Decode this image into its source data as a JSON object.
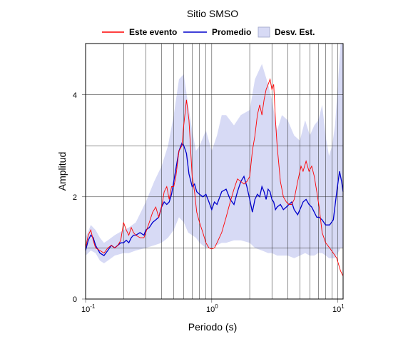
{
  "chart_data": {
    "type": "line",
    "title": "Sitio SMSO",
    "xlabel": "Periodo (s)",
    "ylabel": "Amplitud",
    "x_scale": "log",
    "xlim": [
      0.1,
      11
    ],
    "ylim": [
      0,
      5
    ],
    "x_ticks": [
      {
        "base": "10",
        "exp": "-1"
      },
      {
        "base": "10",
        "exp": "0"
      },
      {
        "base": "10",
        "exp": "1"
      }
    ],
    "y_ticks": [
      "0",
      "2",
      "4"
    ],
    "grid": true,
    "legend": {
      "placement": "top",
      "items": [
        {
          "label": "Este evento",
          "color": "#ff0000",
          "kind": "line"
        },
        {
          "label": "Promedio",
          "color": "#0000cc",
          "kind": "line"
        },
        {
          "label": "Desv. Est.",
          "color": "#d7daf5",
          "kind": "box"
        }
      ]
    },
    "series": [
      {
        "name": "Este evento",
        "color": "#ff0000",
        "points": [
          [
            0.1,
            1.0
          ],
          [
            0.105,
            1.25
          ],
          [
            0.11,
            1.35
          ],
          [
            0.115,
            1.15
          ],
          [
            0.12,
            1.0
          ],
          [
            0.13,
            0.95
          ],
          [
            0.14,
            0.9
          ],
          [
            0.15,
            1.0
          ],
          [
            0.16,
            1.05
          ],
          [
            0.17,
            1.0
          ],
          [
            0.18,
            1.05
          ],
          [
            0.19,
            1.15
          ],
          [
            0.2,
            1.5
          ],
          [
            0.21,
            1.35
          ],
          [
            0.22,
            1.25
          ],
          [
            0.23,
            1.4
          ],
          [
            0.24,
            1.3
          ],
          [
            0.25,
            1.25
          ],
          [
            0.27,
            1.2
          ],
          [
            0.29,
            1.2
          ],
          [
            0.3,
            1.3
          ],
          [
            0.32,
            1.5
          ],
          [
            0.34,
            1.7
          ],
          [
            0.36,
            1.8
          ],
          [
            0.38,
            1.6
          ],
          [
            0.4,
            1.8
          ],
          [
            0.42,
            2.1
          ],
          [
            0.44,
            2.2
          ],
          [
            0.46,
            1.95
          ],
          [
            0.48,
            2.2
          ],
          [
            0.5,
            2.2
          ],
          [
            0.52,
            2.4
          ],
          [
            0.55,
            2.9
          ],
          [
            0.58,
            3.0
          ],
          [
            0.6,
            3.4
          ],
          [
            0.63,
            3.9
          ],
          [
            0.66,
            3.5
          ],
          [
            0.7,
            2.4
          ],
          [
            0.73,
            2.1
          ],
          [
            0.76,
            1.7
          ],
          [
            0.8,
            1.5
          ],
          [
            0.85,
            1.3
          ],
          [
            0.9,
            1.1
          ],
          [
            0.95,
            1.0
          ],
          [
            1.0,
            0.98
          ],
          [
            1.05,
            1.0
          ],
          [
            1.1,
            1.1
          ],
          [
            1.2,
            1.3
          ],
          [
            1.3,
            1.6
          ],
          [
            1.4,
            1.9
          ],
          [
            1.5,
            2.15
          ],
          [
            1.6,
            2.35
          ],
          [
            1.7,
            2.3
          ],
          [
            1.8,
            2.25
          ],
          [
            1.9,
            2.3
          ],
          [
            2.0,
            2.4
          ],
          [
            2.1,
            2.9
          ],
          [
            2.2,
            3.2
          ],
          [
            2.3,
            3.6
          ],
          [
            2.4,
            3.8
          ],
          [
            2.5,
            3.6
          ],
          [
            2.6,
            3.9
          ],
          [
            2.7,
            4.1
          ],
          [
            2.8,
            4.2
          ],
          [
            2.9,
            4.3
          ],
          [
            3.0,
            4.1
          ],
          [
            3.1,
            4.2
          ],
          [
            3.2,
            3.5
          ],
          [
            3.3,
            3.0
          ],
          [
            3.5,
            2.3
          ],
          [
            3.7,
            2.0
          ],
          [
            3.9,
            1.9
          ],
          [
            4.1,
            1.85
          ],
          [
            4.3,
            1.85
          ],
          [
            4.5,
            1.95
          ],
          [
            4.8,
            2.3
          ],
          [
            5.1,
            2.6
          ],
          [
            5.3,
            2.5
          ],
          [
            5.6,
            2.7
          ],
          [
            5.9,
            2.5
          ],
          [
            6.2,
            2.6
          ],
          [
            6.5,
            2.4
          ],
          [
            6.8,
            2.1
          ],
          [
            7.1,
            1.8
          ],
          [
            7.5,
            1.3
          ],
          [
            8.0,
            1.1
          ],
          [
            8.6,
            1.0
          ],
          [
            9.2,
            0.9
          ],
          [
            9.8,
            0.8
          ],
          [
            10.5,
            0.55
          ],
          [
            11,
            0.45
          ]
        ]
      },
      {
        "name": "Promedio",
        "color": "#0000cc",
        "points": [
          [
            0.1,
            0.95
          ],
          [
            0.105,
            1.15
          ],
          [
            0.11,
            1.25
          ],
          [
            0.115,
            1.2
          ],
          [
            0.12,
            1.05
          ],
          [
            0.13,
            0.9
          ],
          [
            0.14,
            0.85
          ],
          [
            0.15,
            0.95
          ],
          [
            0.16,
            1.05
          ],
          [
            0.17,
            1.0
          ],
          [
            0.18,
            1.05
          ],
          [
            0.19,
            1.1
          ],
          [
            0.2,
            1.1
          ],
          [
            0.21,
            1.15
          ],
          [
            0.22,
            1.1
          ],
          [
            0.23,
            1.2
          ],
          [
            0.24,
            1.25
          ],
          [
            0.25,
            1.25
          ],
          [
            0.27,
            1.3
          ],
          [
            0.29,
            1.25
          ],
          [
            0.3,
            1.35
          ],
          [
            0.32,
            1.4
          ],
          [
            0.34,
            1.5
          ],
          [
            0.36,
            1.55
          ],
          [
            0.38,
            1.6
          ],
          [
            0.4,
            1.8
          ],
          [
            0.42,
            1.9
          ],
          [
            0.44,
            1.85
          ],
          [
            0.46,
            1.9
          ],
          [
            0.48,
            2.05
          ],
          [
            0.5,
            2.3
          ],
          [
            0.52,
            2.55
          ],
          [
            0.55,
            2.9
          ],
          [
            0.58,
            3.05
          ],
          [
            0.6,
            3.0
          ],
          [
            0.63,
            2.85
          ],
          [
            0.66,
            2.45
          ],
          [
            0.7,
            2.2
          ],
          [
            0.73,
            2.25
          ],
          [
            0.76,
            2.1
          ],
          [
            0.8,
            2.05
          ],
          [
            0.85,
            2.0
          ],
          [
            0.9,
            2.05
          ],
          [
            0.95,
            1.9
          ],
          [
            1.0,
            1.75
          ],
          [
            1.05,
            1.9
          ],
          [
            1.1,
            1.85
          ],
          [
            1.2,
            2.1
          ],
          [
            1.3,
            2.15
          ],
          [
            1.4,
            1.95
          ],
          [
            1.5,
            1.85
          ],
          [
            1.6,
            2.1
          ],
          [
            1.7,
            2.3
          ],
          [
            1.8,
            2.4
          ],
          [
            1.9,
            2.2
          ],
          [
            2.0,
            1.95
          ],
          [
            2.1,
            1.7
          ],
          [
            2.2,
            1.95
          ],
          [
            2.3,
            2.05
          ],
          [
            2.4,
            2.0
          ],
          [
            2.5,
            2.2
          ],
          [
            2.6,
            2.1
          ],
          [
            2.7,
            1.95
          ],
          [
            2.8,
            2.15
          ],
          [
            2.9,
            2.1
          ],
          [
            3.0,
            1.95
          ],
          [
            3.1,
            1.9
          ],
          [
            3.2,
            1.75
          ],
          [
            3.3,
            1.8
          ],
          [
            3.5,
            1.85
          ],
          [
            3.7,
            1.75
          ],
          [
            3.9,
            1.8
          ],
          [
            4.1,
            1.85
          ],
          [
            4.3,
            1.9
          ],
          [
            4.5,
            1.75
          ],
          [
            4.8,
            1.65
          ],
          [
            5.1,
            1.8
          ],
          [
            5.3,
            1.9
          ],
          [
            5.6,
            1.95
          ],
          [
            5.9,
            1.85
          ],
          [
            6.2,
            1.8
          ],
          [
            6.5,
            1.7
          ],
          [
            6.8,
            1.6
          ],
          [
            7.1,
            1.6
          ],
          [
            7.5,
            1.55
          ],
          [
            8.0,
            1.45
          ],
          [
            8.6,
            1.45
          ],
          [
            9.2,
            1.55
          ],
          [
            9.8,
            2.1
          ],
          [
            10.3,
            2.5
          ],
          [
            10.7,
            2.3
          ],
          [
            11,
            2.1
          ]
        ]
      },
      {
        "name": "Desv. Est.",
        "color": "#d7daf5",
        "type": "band",
        "x": [
          0.1,
          0.11,
          0.12,
          0.13,
          0.14,
          0.15,
          0.17,
          0.2,
          0.22,
          0.25,
          0.3,
          0.35,
          0.4,
          0.45,
          0.5,
          0.55,
          0.6,
          0.65,
          0.7,
          0.75,
          0.8,
          0.9,
          1.0,
          1.1,
          1.2,
          1.3,
          1.5,
          1.7,
          2.0,
          2.2,
          2.5,
          2.8,
          3.0,
          3.3,
          3.6,
          4.0,
          4.5,
          5.0,
          5.5,
          6.0,
          6.5,
          7.0,
          7.5,
          8.0,
          8.5,
          9.0,
          9.5,
          10.0,
          10.5,
          11
        ],
        "lower": [
          0.85,
          0.95,
          0.9,
          0.75,
          0.7,
          0.75,
          0.85,
          0.9,
          0.9,
          0.95,
          1.0,
          1.05,
          1.1,
          1.2,
          1.35,
          1.6,
          1.5,
          1.3,
          1.25,
          1.2,
          1.1,
          1.0,
          1.0,
          1.05,
          1.1,
          1.1,
          1.15,
          1.15,
          1.1,
          1.0,
          0.95,
          0.9,
          0.9,
          0.85,
          0.85,
          0.85,
          0.8,
          0.85,
          0.9,
          0.85,
          0.85,
          0.9,
          0.9,
          0.85,
          0.8,
          0.8,
          0.8,
          0.9,
          1.0,
          1.0
        ],
        "upper": [
          1.2,
          1.45,
          1.35,
          1.2,
          1.1,
          1.15,
          1.25,
          1.35,
          1.4,
          1.5,
          1.9,
          2.3,
          2.6,
          3.0,
          3.6,
          4.3,
          4.4,
          3.8,
          3.3,
          2.9,
          3.0,
          3.3,
          2.9,
          3.2,
          3.6,
          3.6,
          3.4,
          3.6,
          3.7,
          4.3,
          4.6,
          4.2,
          3.9,
          3.3,
          3.6,
          3.5,
          3.2,
          3.1,
          3.5,
          3.2,
          3.4,
          3.5,
          3.8,
          3.2,
          2.8,
          3.0,
          3.4,
          4.2,
          5.0,
          5.0
        ]
      }
    ]
  }
}
